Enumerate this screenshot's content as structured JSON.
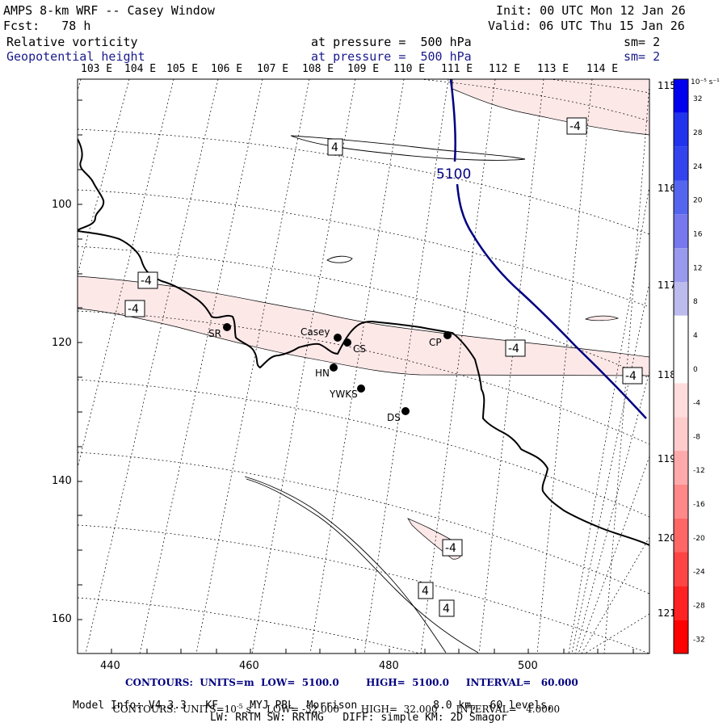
{
  "header": {
    "title": "AMPS 8-km WRF -- Casey Window",
    "init": "Init: 00 UTC Mon 12 Jan 26",
    "fcst": "Fcst:   78 h",
    "valid": "Valid: 06 UTC Thu 15 Jan 26",
    "field1_name": "Relative vorticity",
    "field1_level": "at pressure =  500 hPa",
    "field1_sm": "sm= 2",
    "field2_name": "Geopotential height",
    "field2_level": "at pressure =  500 hPa",
    "field2_sm": "sm= 2"
  },
  "axes": {
    "top_lon_labels": [
      "103 E",
      "104 E",
      "105 E",
      "106 E",
      "107 E",
      "108 E",
      "109 E",
      "110 E",
      "111 E",
      "112 E",
      "113 E",
      "114 E"
    ],
    "right_lon_labels": [
      "115 E",
      "116 E",
      "117 E",
      "118 E",
      "119 E",
      "120 E",
      "121 E"
    ],
    "x_ticks": [
      "440",
      "460",
      "480",
      "500"
    ],
    "y_ticks": [
      "100",
      "120",
      "140",
      "160"
    ]
  },
  "stations": [
    {
      "id": "SR",
      "label": "SR"
    },
    {
      "id": "Casey",
      "label": "Casey"
    },
    {
      "id": "CS",
      "label": "CS"
    },
    {
      "id": "CP",
      "label": "CP"
    },
    {
      "id": "HN",
      "label": "HN"
    },
    {
      "id": "YWKS",
      "label": "YWKS"
    },
    {
      "id": "DS",
      "label": "DS"
    }
  ],
  "contour_labels": {
    "neg4": "-4",
    "pos4": "4",
    "height": "5100"
  },
  "colorbar": {
    "units": "10⁻⁵ s⁻¹",
    "ticks": [
      "32",
      "28",
      "24",
      "20",
      "16",
      "12",
      "8",
      "4",
      "0",
      "-4",
      "-8",
      "-12",
      "-16",
      "-20",
      "-24",
      "-28",
      "-32"
    ],
    "colors": [
      "#0000ee",
      "#2233ee",
      "#3344ee",
      "#5566ee",
      "#7777ee",
      "#9999ee",
      "#bbbbee",
      "#ffffff",
      "#ffffff",
      "#ffdddd",
      "#ffcccc",
      "#ffaaaa",
      "#ff8888",
      "#ff6666",
      "#ff4444",
      "#ff2222",
      "#ff0000"
    ]
  },
  "footer": {
    "line1": "CONTOURS:  UNITS=m  LOW=  5100.0        HIGH=  5100.0     INTERVAL=   60.000",
    "line2_a": "CONTOURS:  UNITS=10",
    "line2_b": "-5",
    "line2_c": " s",
    "line2_d": "-1",
    "line2_e": "   LOW= -32.000       HIGH=  32.000      INTERVAL=   4.0000",
    "line3": "Model Info: V4.3.3   KF     MYJ PBL  Morrison            8.0 km,  60 levels,",
    "line4": "LW: RRTM SW: RRTMG   DIFF: simple KM: 2D Smagor"
  },
  "colors": {
    "height_contour": "#000080",
    "neg_fill": "#fde8e8",
    "coast": "#000000"
  }
}
